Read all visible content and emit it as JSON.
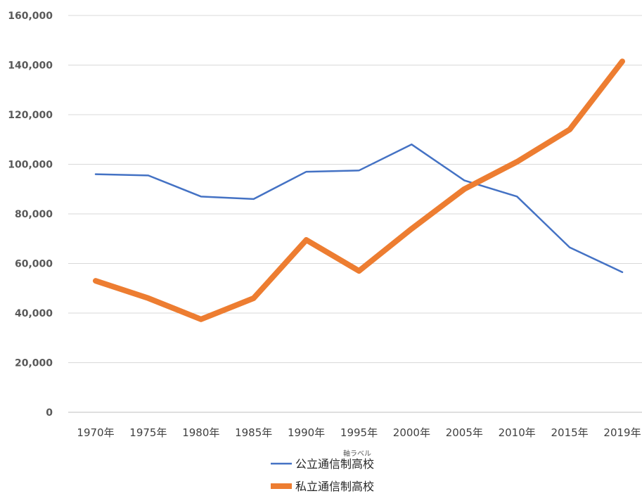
{
  "chart_data": {
    "type": "line",
    "categories": [
      "1970年",
      "1975年",
      "1980年",
      "1985年",
      "1990年",
      "1995年",
      "2000年",
      "2005年",
      "2010年",
      "2015年",
      "2019年"
    ],
    "series": [
      {
        "name": "公立通信制高校",
        "color": "#4472C4",
        "values": [
          96000,
          95500,
          87000,
          86000,
          97000,
          97500,
          108000,
          93500,
          87000,
          66500,
          56500
        ]
      },
      {
        "name": "私立通信制高校",
        "color": "#ED7D31",
        "values": [
          53000,
          46000,
          37500,
          46000,
          69500,
          57000,
          74000,
          90000,
          101000,
          114000,
          141500
        ]
      }
    ],
    "yticks": [
      "0",
      "20,000",
      "40,000",
      "60,000",
      "80,000",
      "100,000",
      "120,000",
      "140,000",
      "160,000"
    ],
    "ylim": [
      0,
      160000
    ],
    "xlabel": "軸ラベル",
    "grid": true,
    "legend_position": "bottom"
  }
}
